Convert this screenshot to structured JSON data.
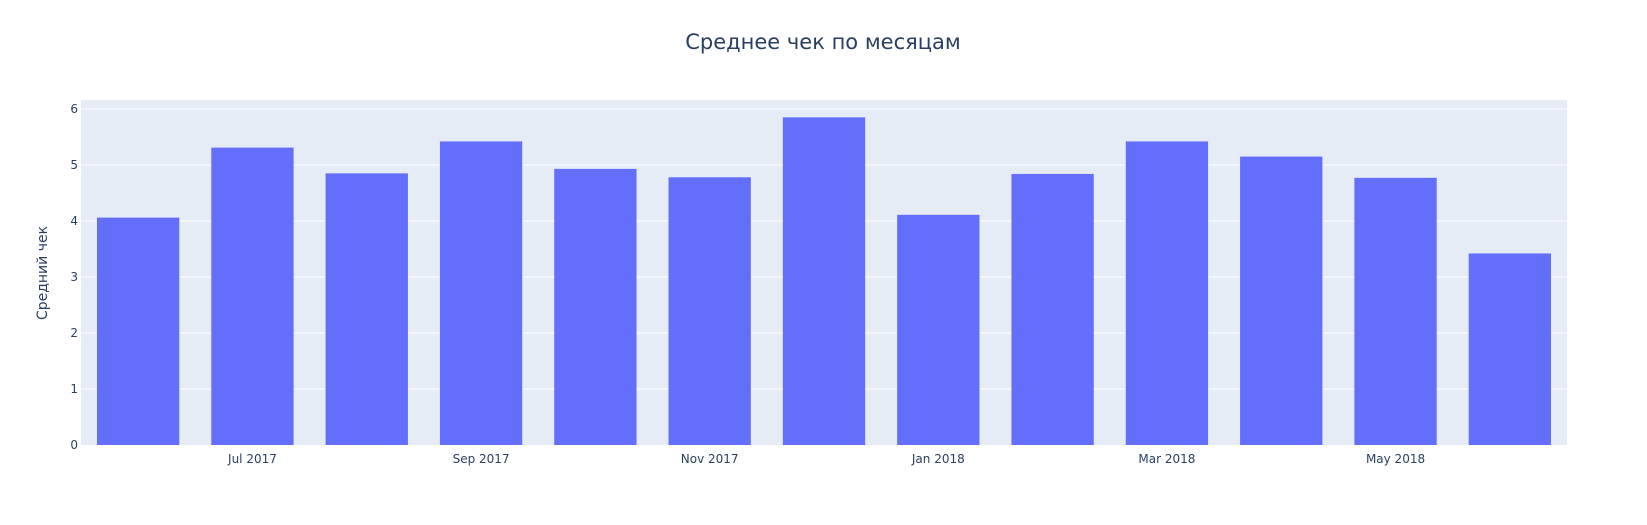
{
  "chart_data": {
    "type": "bar",
    "title": "Среднее чек по месяцам",
    "xlabel": "",
    "ylabel": "Средний чек",
    "x": [
      "2017-06",
      "2017-07",
      "2017-08",
      "2017-09",
      "2017-10",
      "2017-11",
      "2017-12",
      "2018-01",
      "2018-02",
      "2018-03",
      "2018-04",
      "2018-05",
      "2018-06"
    ],
    "values": [
      4.06,
      5.31,
      4.85,
      5.42,
      4.93,
      4.78,
      5.85,
      4.11,
      4.84,
      5.42,
      5.15,
      4.77,
      3.42
    ],
    "x_tick_labels": [
      {
        "x": "2017-07",
        "label": "Jul 2017"
      },
      {
        "x": "2017-09",
        "label": "Sep 2017"
      },
      {
        "x": "2017-11",
        "label": "Nov 2017"
      },
      {
        "x": "2018-01",
        "label": "Jan 2018"
      },
      {
        "x": "2018-03",
        "label": "Mar 2018"
      },
      {
        "x": "2018-05",
        "label": "May 2018"
      }
    ],
    "y_ticks": [
      0,
      1,
      2,
      3,
      4,
      5,
      6
    ],
    "ylim": [
      0,
      6.16
    ],
    "grid": true,
    "bar_color": "#636efa",
    "plot_background": "#e5ecf6",
    "text_color": "#2a3f5f"
  }
}
